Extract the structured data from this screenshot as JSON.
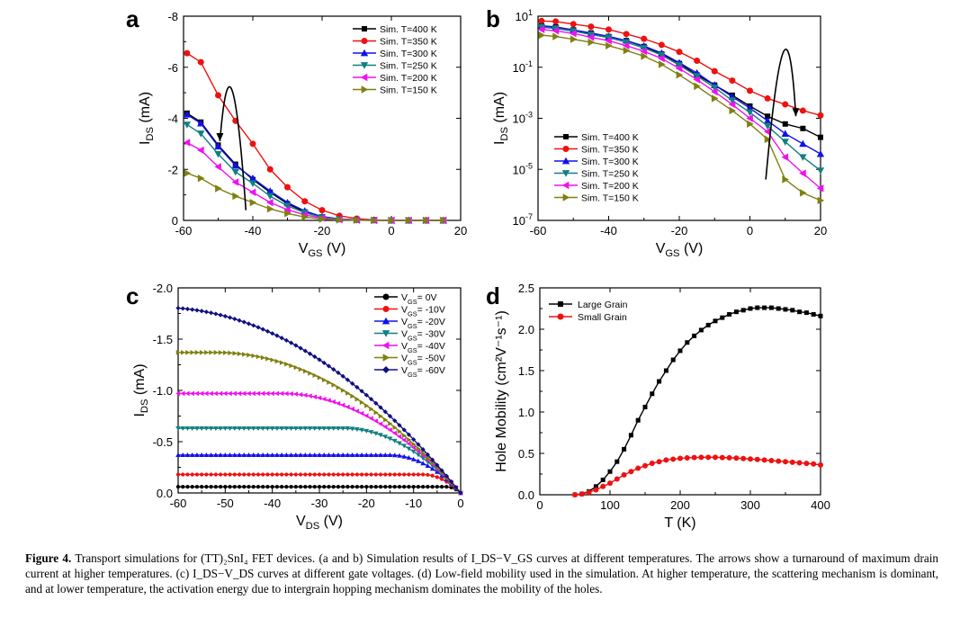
{
  "colors": {
    "series": [
      "#000000",
      "#ee1111",
      "#1010ee",
      "#118080",
      "#ee11ee",
      "#808010",
      "#101080"
    ]
  },
  "caption": {
    "label": "Figure 4.",
    "text": "Transport simulations for (TT)₂SnI₄ FET devices. (a and b) Simulation results of I_DS−V_GS curves at different temperatures. The arrows show a turnaround of maximum drain current at higher temperatures. (c) I_DS−V_DS curves at different gate voltages. (d) Low-field mobility used in the simulation. At higher temperature, the scattering mechanism is dominant, and at lower temperature, the activation energy due to intergrain hopping mechanism dominates the mobility of the holes."
  },
  "chart_data": [
    {
      "panel": "a",
      "type": "line",
      "xlabel": "V_GS (V)",
      "ylabel": "I_DS (mA)",
      "xlim": [
        -60,
        20
      ],
      "ylim": [
        0,
        -8
      ],
      "xticks": [
        -60,
        -40,
        -20,
        0,
        20
      ],
      "yticks": [
        0,
        -2,
        -4,
        -6,
        -8
      ],
      "ytick_labels": [
        "0",
        "-2",
        "-4",
        "-6",
        "-8"
      ],
      "legend": "top-right",
      "x": [
        -59,
        -55,
        -50,
        -45,
        -40,
        -35,
        -30,
        -25,
        -20,
        -15,
        -10,
        -5,
        0,
        5,
        10,
        15
      ],
      "series": [
        {
          "name": "Sim. T=400 K",
          "marker": "square",
          "values": [
            -4.2,
            -3.85,
            -2.95,
            -2.2,
            -1.6,
            -1.1,
            -0.65,
            -0.33,
            -0.14,
            -0.05,
            -0.02,
            -0.01,
            0,
            0,
            0,
            0
          ]
        },
        {
          "name": "Sim. T=350 K",
          "marker": "circle",
          "values": [
            -6.55,
            -6.2,
            -4.9,
            -3.9,
            -3.0,
            -2.0,
            -1.3,
            -0.75,
            -0.4,
            -0.18,
            -0.07,
            -0.02,
            0,
            0,
            0,
            0
          ]
        },
        {
          "name": "Sim. T=300 K",
          "marker": "triangle-up",
          "values": [
            -4.15,
            -3.8,
            -2.9,
            -2.15,
            -1.65,
            -1.15,
            -0.7,
            -0.37,
            -0.15,
            -0.06,
            -0.02,
            -0.01,
            0,
            0,
            0,
            0
          ]
        },
        {
          "name": "Sim. T=250 K",
          "marker": "triangle-down",
          "values": [
            -3.75,
            -3.4,
            -2.6,
            -1.9,
            -1.45,
            -0.95,
            -0.57,
            -0.3,
            -0.12,
            -0.05,
            -0.02,
            -0.01,
            0,
            0,
            0,
            0
          ]
        },
        {
          "name": "Sim. T=200 K",
          "marker": "triangle-left",
          "values": [
            -3.05,
            -2.75,
            -2.1,
            -1.5,
            -1.1,
            -0.7,
            -0.42,
            -0.22,
            -0.09,
            -0.03,
            -0.01,
            0,
            0,
            0,
            0,
            0
          ]
        },
        {
          "name": "Sim. T=150 K",
          "marker": "triangle-right",
          "values": [
            -1.85,
            -1.65,
            -1.25,
            -0.95,
            -0.7,
            -0.45,
            -0.27,
            -0.13,
            -0.05,
            -0.02,
            -0.01,
            0,
            0,
            0,
            0,
            0
          ]
        }
      ],
      "arrow": {
        "from": [
          -42,
          -0.4
        ],
        "via": [
          -46,
          -5.1
        ],
        "to": [
          -49.5,
          -3.1
        ]
      }
    },
    {
      "panel": "b",
      "type": "line",
      "xlabel": "V_GS (V)",
      "ylabel": "I_DS (mA)",
      "xlim": [
        -60,
        20
      ],
      "ylim": [
        1e-07,
        10
      ],
      "yscale": "log",
      "xticks": [
        -60,
        -40,
        -20,
        0,
        20
      ],
      "yticks": [
        10,
        0.1,
        0.001,
        1e-05,
        1e-07
      ],
      "ytick_base": "10",
      "ytick_exponents": [
        "1",
        "-1",
        "-3",
        "-5",
        "-7"
      ],
      "legend": "bottom-left",
      "x": [
        -59,
        -55,
        -50,
        -45,
        -40,
        -35,
        -30,
        -25,
        -20,
        -15,
        -10,
        -5,
        0,
        5,
        10,
        15,
        20
      ],
      "series": [
        {
          "name": "Sim. T=400 K",
          "marker": "square",
          "values": [
            4.2,
            3.8,
            2.9,
            2.2,
            1.6,
            1.1,
            0.65,
            0.33,
            0.14,
            0.05,
            0.02,
            0.008,
            0.003,
            0.0012,
            0.0006,
            0.0004,
            0.00018
          ]
        },
        {
          "name": "Sim. T=350 K",
          "marker": "circle",
          "values": [
            6.5,
            6.2,
            4.9,
            3.9,
            3.0,
            2.0,
            1.3,
            0.75,
            0.4,
            0.18,
            0.07,
            0.03,
            0.012,
            0.006,
            0.0035,
            0.002,
            0.0013
          ]
        },
        {
          "name": "Sim. T=300 K",
          "marker": "triangle-up",
          "values": [
            4.1,
            3.7,
            2.9,
            2.1,
            1.6,
            1.1,
            0.68,
            0.36,
            0.15,
            0.06,
            0.02,
            0.007,
            0.0025,
            0.0008,
            0.00025,
            0.0001,
            4e-05
          ]
        },
        {
          "name": "Sim. T=250 K",
          "marker": "triangle-down",
          "values": [
            3.7,
            3.3,
            2.6,
            1.9,
            1.45,
            0.95,
            0.57,
            0.3,
            0.12,
            0.045,
            0.016,
            0.005,
            0.0017,
            0.0005,
            0.00012,
            3e-05,
            9e-06
          ]
        },
        {
          "name": "Sim. T=200 K",
          "marker": "triangle-left",
          "values": [
            3.0,
            2.7,
            2.1,
            1.5,
            1.1,
            0.7,
            0.42,
            0.22,
            0.09,
            0.033,
            0.011,
            0.0035,
            0.001,
            0.0003,
            3e-05,
            7e-06,
            1.8e-06
          ]
        },
        {
          "name": "Sim. T=150 K",
          "marker": "triangle-right",
          "values": [
            1.8,
            1.6,
            1.25,
            0.95,
            0.7,
            0.45,
            0.27,
            0.13,
            0.05,
            0.018,
            0.006,
            0.002,
            0.0006,
            0.00015,
            4e-06,
            1.2e-06,
            6e-07
          ]
        }
      ],
      "arrow": {
        "from": [
          4.5,
          4e-06
        ],
        "via": [
          9.5,
          0.4
        ],
        "to": [
          13,
          0.0012
        ]
      }
    },
    {
      "panel": "c",
      "type": "line",
      "xlabel": "V_DS (V)",
      "ylabel": "I_DS (mA)",
      "xlim": [
        -60,
        0
      ],
      "ylim": [
        0,
        -2.0
      ],
      "xticks": [
        -60,
        -50,
        -40,
        -30,
        -20,
        -10,
        0
      ],
      "yticks": [
        0,
        -0.5,
        -1.0,
        -1.5,
        -2.0
      ],
      "ytick_labels": [
        "0.0",
        "-0.5",
        "-1.0",
        "-1.5",
        "-2.0"
      ],
      "legend": "top-right",
      "x_range": [
        -60,
        0
      ],
      "series": [
        {
          "name": "V_GS= 0V",
          "marker": "circle",
          "sat_current": -0.06,
          "pinch_voltage": -3
        },
        {
          "name": "V_GS= -10V",
          "marker": "circle",
          "sat_current": -0.18,
          "pinch_voltage": -8
        },
        {
          "name": "V_GS= -20V",
          "marker": "triangle-up",
          "sat_current": -0.37,
          "pinch_voltage": -15
        },
        {
          "name": "V_GS= -30V",
          "marker": "triangle-down",
          "sat_current": -0.63,
          "pinch_voltage": -25
        },
        {
          "name": "V_GS= -40V",
          "marker": "triangle-left",
          "sat_current": -0.97,
          "pinch_voltage": -38
        },
        {
          "name": "V_GS= -50V",
          "marker": "triangle-right",
          "sat_current": -1.37,
          "pinch_voltage": -52
        },
        {
          "name": "V_GS= -60V",
          "marker": "diamond",
          "sat_current": -1.81,
          "pinch_voltage": -64
        }
      ]
    },
    {
      "panel": "d",
      "type": "line",
      "xlabel": "T (K)",
      "ylabel": "Hole Mobility (cm²V⁻¹s⁻¹)",
      "xlim": [
        0,
        400
      ],
      "ylim": [
        0,
        2.5
      ],
      "xticks": [
        0,
        100,
        200,
        300,
        400
      ],
      "yticks": [
        0,
        0.5,
        1.0,
        1.5,
        2.0,
        2.5
      ],
      "ytick_labels": [
        "0.0",
        "0.5",
        "1.0",
        "1.5",
        "2.0",
        "2.5"
      ],
      "legend": "top-left",
      "series": [
        {
          "name": "Large Grain",
          "marker": "square",
          "x": [
            50,
            60,
            70,
            80,
            90,
            100,
            110,
            120,
            130,
            140,
            150,
            160,
            170,
            180,
            190,
            200,
            210,
            220,
            230,
            240,
            250,
            260,
            270,
            280,
            290,
            300,
            310,
            320,
            330,
            340,
            350,
            360,
            370,
            380,
            390,
            400
          ],
          "values": [
            0.0,
            0.01,
            0.04,
            0.1,
            0.18,
            0.28,
            0.4,
            0.55,
            0.72,
            0.9,
            1.06,
            1.22,
            1.37,
            1.5,
            1.63,
            1.74,
            1.84,
            1.92,
            1.99,
            2.05,
            2.1,
            2.14,
            2.18,
            2.21,
            2.23,
            2.25,
            2.26,
            2.26,
            2.26,
            2.25,
            2.24,
            2.23,
            2.21,
            2.2,
            2.18,
            2.16
          ]
        },
        {
          "name": "Small Grain",
          "marker": "circle",
          "x": [
            50,
            60,
            70,
            80,
            90,
            100,
            110,
            120,
            130,
            140,
            150,
            160,
            170,
            180,
            190,
            200,
            210,
            220,
            230,
            240,
            250,
            260,
            270,
            280,
            290,
            300,
            310,
            320,
            330,
            340,
            350,
            360,
            370,
            380,
            390,
            400
          ],
          "values": [
            0.0,
            0.01,
            0.03,
            0.06,
            0.1,
            0.14,
            0.19,
            0.24,
            0.28,
            0.32,
            0.35,
            0.38,
            0.4,
            0.42,
            0.43,
            0.44,
            0.445,
            0.45,
            0.452,
            0.453,
            0.452,
            0.45,
            0.447,
            0.443,
            0.438,
            0.432,
            0.426,
            0.42,
            0.413,
            0.406,
            0.4,
            0.393,
            0.386,
            0.379,
            0.372,
            0.36
          ]
        }
      ]
    }
  ]
}
